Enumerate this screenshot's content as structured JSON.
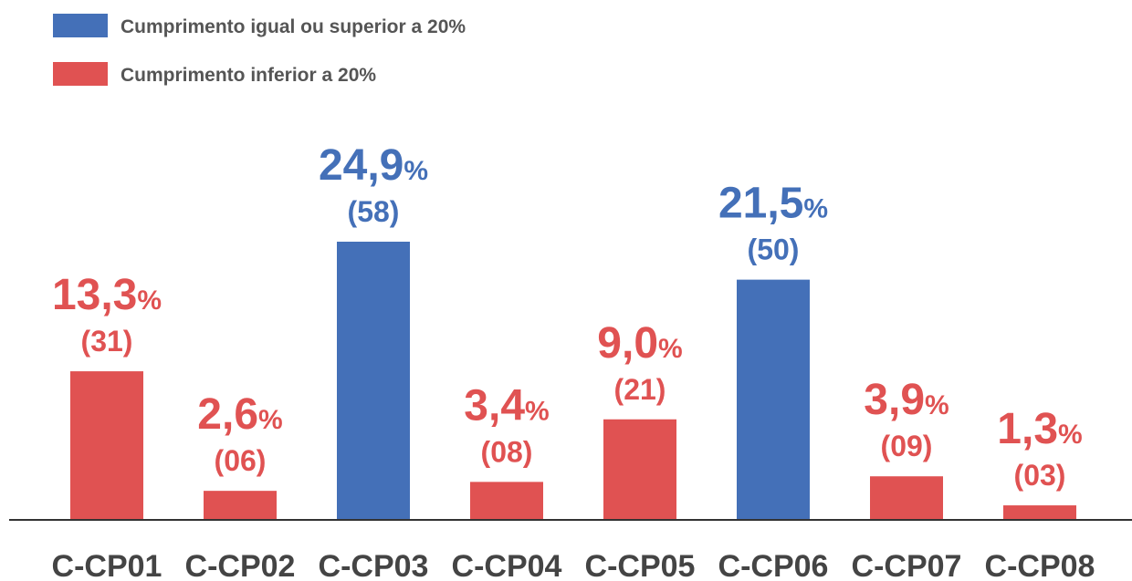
{
  "chart_data": {
    "type": "bar",
    "legend": [
      {
        "name": "Cumprimento igual ou superior a 20%",
        "color": "#4470b8"
      },
      {
        "name": "Cumprimento inferior a 20%",
        "color": "#e05252"
      }
    ],
    "categories": [
      "C-CP01",
      "C-CP02",
      "C-CP03",
      "C-CP04",
      "C-CP05",
      "C-CP06",
      "C-CP07",
      "C-CP08"
    ],
    "values": [
      13.3,
      2.6,
      24.9,
      3.4,
      9.0,
      21.5,
      3.9,
      1.3
    ],
    "value_labels": [
      "13,3%",
      "2,6%",
      "24,9%",
      "3,4%",
      "9,0%",
      "21,5%",
      "3,9%",
      "1,3%"
    ],
    "colors": [
      "#e05252",
      "#e05252",
      "#4470b8",
      "#e05252",
      "#e05252",
      "#4470b8",
      "#e05252",
      "#e05252"
    ],
    "counts": {
      "values": [
        31,
        6,
        58,
        8,
        21,
        50,
        9,
        3
      ],
      "value_labels": [
        "(31)",
        "(06)",
        "(58)",
        "(08)",
        "(21)",
        "(50)",
        "(09)",
        "(03)"
      ]
    },
    "ylim": [
      0,
      28
    ]
  }
}
